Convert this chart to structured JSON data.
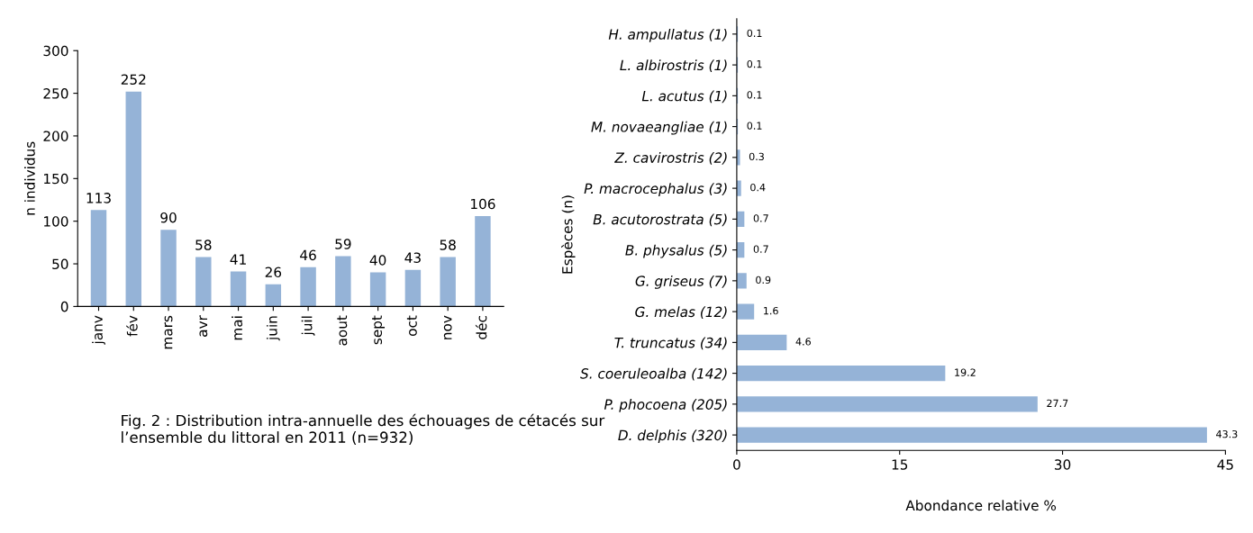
{
  "chart_data": [
    {
      "type": "bar",
      "ylabel": "n individus",
      "categories": [
        "janv",
        "fév",
        "mars",
        "avr",
        "mai",
        "juin",
        "juil",
        "aout",
        "sept",
        "oct",
        "nov",
        "déc"
      ],
      "values": [
        113,
        252,
        90,
        58,
        41,
        26,
        46,
        59,
        40,
        43,
        58,
        106
      ],
      "color": "#95b3d7",
      "ylim": [
        0,
        300
      ],
      "yticks": [
        0,
        50,
        100,
        150,
        200,
        250,
        300
      ],
      "data_labels": true,
      "annotations": [
        "Fig. 2 : Distribution intra-annuelle des échouages de cétacés sur l’ensemble du littoral en 2011 (n=932)"
      ]
    },
    {
      "type": "bar",
      "orientation": "horizontal",
      "xlabel": "Abondance relative %",
      "ylabel": "Espèces (n)",
      "categories": [
        "H. ampullatus (1)",
        "L. albirostris (1)",
        "L. acutus (1)",
        "M. novaeangliae (1)",
        "Z. cavirostris (2)",
        "P. macrocephalus (3)",
        "B. acutorostrata (5)",
        "B. physalus (5)",
        "G. griseus (7)",
        "G. melas (12)",
        "T. truncatus (34)",
        "S. coeruleoalba (142)",
        "P. phocoena (205)",
        "D. delphis (320)"
      ],
      "values": [
        0.1,
        0.1,
        0.1,
        0.1,
        0.3,
        0.4,
        0.7,
        0.7,
        0.9,
        1.6,
        4.6,
        19.2,
        27.7,
        43.3
      ],
      "color": "#95b3d7",
      "xlim": [
        0,
        45
      ],
      "xticks": [
        0,
        15,
        30,
        45
      ],
      "data_labels": true
    }
  ]
}
